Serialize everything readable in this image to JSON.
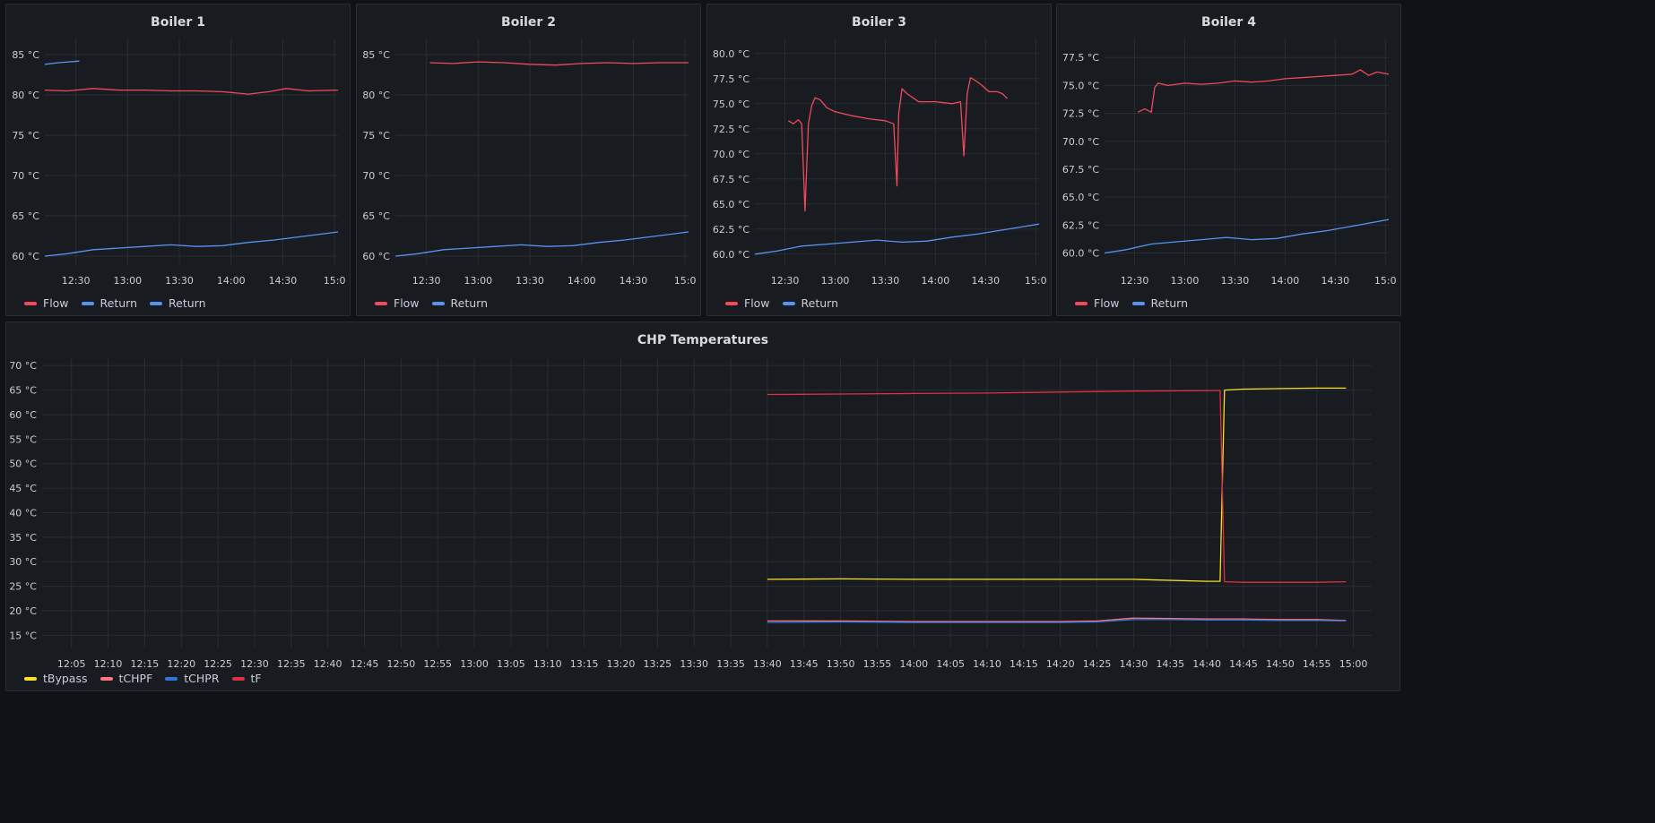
{
  "colors": {
    "flow": "#f2495c",
    "return": "#5794f2",
    "tBypass": "#fade2a",
    "tCHPF": "#ff7383",
    "tCHPR": "#3274d9",
    "tF": "#e02f44",
    "grid": "#2a2d33",
    "panel": "#181b1f",
    "background": "#111217"
  },
  "chart_data": [
    {
      "type": "line",
      "title": "Boiler 1",
      "x_ticks": [
        "12:30",
        "13:00",
        "13:30",
        "14:00",
        "14:30",
        "15:0"
      ],
      "y_ticks": [
        "60 °C",
        "65 °C",
        "70 °C",
        "75 °C",
        "80 °C",
        "85 °C"
      ],
      "ylim": [
        59,
        87
      ],
      "xlim_minutes": [
        732,
        902
      ],
      "grid": true,
      "legend_position": "bottom-left",
      "legend": [
        "Flow",
        "Return",
        "Return"
      ],
      "series": [
        {
          "name": "Flow",
          "color": "#f2495c",
          "x": [
            732,
            745,
            760,
            775,
            790,
            805,
            820,
            835,
            850,
            862,
            872,
            885,
            902
          ],
          "y": [
            80.6,
            80.5,
            80.8,
            80.6,
            80.6,
            80.5,
            80.5,
            80.4,
            80.1,
            80.4,
            80.8,
            80.5,
            80.6
          ]
        },
        {
          "name": "Return",
          "color": "#5794f2",
          "x": [
            732,
            745,
            760,
            775,
            790,
            805,
            820,
            835,
            850,
            865,
            880,
            902
          ],
          "y": [
            60.0,
            60.3,
            60.8,
            61.0,
            61.2,
            61.4,
            61.2,
            61.3,
            61.7,
            62.0,
            62.4,
            63.0
          ]
        },
        {
          "name": "Return",
          "color": "#5794f2",
          "x": [
            732,
            740,
            752
          ],
          "y": [
            83.8,
            84.0,
            84.2
          ]
        }
      ]
    },
    {
      "type": "line",
      "title": "Boiler 2",
      "x_ticks": [
        "12:30",
        "13:00",
        "13:30",
        "14:00",
        "14:30",
        "15:0"
      ],
      "y_ticks": [
        "60 °C",
        "65 °C",
        "70 °C",
        "75 °C",
        "80 °C",
        "85 °C"
      ],
      "ylim": [
        59,
        87
      ],
      "xlim_minutes": [
        732,
        902
      ],
      "grid": true,
      "legend_position": "bottom-left",
      "legend": [
        "Flow",
        "Return"
      ],
      "series": [
        {
          "name": "Flow",
          "color": "#f2495c",
          "x": [
            752,
            765,
            780,
            795,
            810,
            825,
            840,
            855,
            870,
            885,
            902
          ],
          "y": [
            84.0,
            83.9,
            84.1,
            84.0,
            83.8,
            83.7,
            83.9,
            84.0,
            83.9,
            84.0,
            84.0
          ]
        },
        {
          "name": "Return",
          "color": "#5794f2",
          "x": [
            732,
            745,
            760,
            775,
            790,
            805,
            820,
            835,
            850,
            865,
            880,
            902
          ],
          "y": [
            60.0,
            60.3,
            60.8,
            61.0,
            61.2,
            61.4,
            61.2,
            61.3,
            61.7,
            62.0,
            62.4,
            63.0
          ]
        }
      ]
    },
    {
      "type": "line",
      "title": "Boiler 3",
      "x_ticks": [
        "12:30",
        "13:00",
        "13:30",
        "14:00",
        "14:30",
        "15:0"
      ],
      "y_ticks": [
        "60.0 °C",
        "62.5 °C",
        "65.0 °C",
        "67.5 °C",
        "70.0 °C",
        "72.5 °C",
        "75.0 °C",
        "77.5 °C",
        "80.0 °C"
      ],
      "ylim": [
        59,
        81.5
      ],
      "xlim_minutes": [
        732,
        902
      ],
      "grid": true,
      "legend_position": "bottom-left",
      "legend": [
        "Flow",
        "Return"
      ],
      "series": [
        {
          "name": "Flow",
          "color": "#f2495c",
          "x": [
            752,
            755,
            758,
            760,
            762,
            764,
            766,
            768,
            771,
            775,
            780,
            790,
            800,
            810,
            815,
            817,
            818,
            820,
            823,
            830,
            840,
            850,
            855,
            857,
            859,
            861,
            864,
            868,
            872,
            877,
            880,
            883
          ],
          "y": [
            73.3,
            73.0,
            73.4,
            73.0,
            64.3,
            73.0,
            74.8,
            75.6,
            75.4,
            74.6,
            74.2,
            73.8,
            73.5,
            73.3,
            73.0,
            66.8,
            74.0,
            76.5,
            76.0,
            75.2,
            75.2,
            75.0,
            75.2,
            69.8,
            76.0,
            77.6,
            77.3,
            76.8,
            76.2,
            76.2,
            76.0,
            75.5
          ]
        },
        {
          "name": "Return",
          "color": "#5794f2",
          "x": [
            732,
            745,
            760,
            775,
            790,
            805,
            820,
            835,
            850,
            865,
            880,
            902
          ],
          "y": [
            60.0,
            60.3,
            60.8,
            61.0,
            61.2,
            61.4,
            61.2,
            61.3,
            61.7,
            62.0,
            62.4,
            63.0
          ]
        }
      ]
    },
    {
      "type": "line",
      "title": "Boiler 4",
      "x_ticks": [
        "12:30",
        "13:00",
        "13:30",
        "14:00",
        "14:30",
        "15:0"
      ],
      "y_ticks": [
        "60.0 °C",
        "62.5 °C",
        "65.0 °C",
        "67.5 °C",
        "70.0 °C",
        "72.5 °C",
        "75.0 °C",
        "77.5 °C"
      ],
      "ylim": [
        59,
        79.2
      ],
      "xlim_minutes": [
        732,
        902
      ],
      "grid": true,
      "legend_position": "bottom-left",
      "legend": [
        "Flow",
        "Return"
      ],
      "series": [
        {
          "name": "Flow",
          "color": "#f2495c",
          "x": [
            752,
            756,
            760,
            762,
            764,
            770,
            780,
            790,
            800,
            810,
            820,
            830,
            840,
            850,
            860,
            870,
            880,
            885,
            890,
            895,
            902
          ],
          "y": [
            72.6,
            72.9,
            72.6,
            74.8,
            75.2,
            75.0,
            75.2,
            75.1,
            75.2,
            75.4,
            75.3,
            75.4,
            75.6,
            75.7,
            75.8,
            75.9,
            76.0,
            76.4,
            75.9,
            76.2,
            76.0
          ]
        },
        {
          "name": "Return",
          "color": "#5794f2",
          "x": [
            732,
            745,
            760,
            775,
            790,
            805,
            820,
            835,
            850,
            865,
            880,
            902
          ],
          "y": [
            60.0,
            60.3,
            60.8,
            61.0,
            61.2,
            61.4,
            61.2,
            61.3,
            61.7,
            62.0,
            62.4,
            63.0
          ]
        }
      ]
    },
    {
      "type": "line",
      "title": "CHP Temperatures",
      "x_ticks": [
        "12:05",
        "12:10",
        "12:15",
        "12:20",
        "12:25",
        "12:30",
        "12:35",
        "12:40",
        "12:45",
        "12:50",
        "12:55",
        "13:00",
        "13:05",
        "13:10",
        "13:15",
        "13:20",
        "13:25",
        "13:30",
        "13:35",
        "13:40",
        "13:45",
        "13:50",
        "13:55",
        "14:00",
        "14:05",
        "14:10",
        "14:15",
        "14:20",
        "14:25",
        "14:30",
        "14:35",
        "14:40",
        "14:45",
        "14:50",
        "14:55",
        "15:00"
      ],
      "y_ticks": [
        "15 °C",
        "20 °C",
        "25 °C",
        "30 °C",
        "35 °C",
        "40 °C",
        "45 °C",
        "50 °C",
        "55 °C",
        "60 °C",
        "65 °C",
        "70 °C"
      ],
      "ylim": [
        12.5,
        71.5
      ],
      "xlim_minutes": [
        721,
        902.5
      ],
      "grid": true,
      "legend_position": "bottom-left",
      "legend": [
        "tBypass",
        "tCHPF",
        "tCHPR",
        "tF"
      ],
      "series": [
        {
          "name": "tBypass",
          "color": "#fade2a",
          "x": [
            820,
            830,
            840,
            850,
            860,
            870,
            880,
            881.8,
            882.4,
            885,
            890,
            895,
            899
          ],
          "y": [
            26.4,
            26.5,
            26.4,
            26.4,
            26.4,
            26.4,
            26.0,
            26.0,
            65.0,
            65.2,
            65.3,
            65.4,
            65.4
          ]
        },
        {
          "name": "tCHPF",
          "color": "#ff7383",
          "x": [
            820,
            830,
            840,
            850,
            860,
            865,
            870,
            875,
            880,
            885,
            890,
            895,
            899
          ],
          "y": [
            17.9,
            17.9,
            17.8,
            17.8,
            17.8,
            17.9,
            18.5,
            18.4,
            18.3,
            18.3,
            18.2,
            18.2,
            18.0
          ]
        },
        {
          "name": "tCHPR",
          "color": "#3274d9",
          "x": [
            820,
            830,
            840,
            850,
            860,
            865,
            870,
            875,
            880,
            885,
            890,
            895,
            899
          ],
          "y": [
            17.6,
            17.7,
            17.6,
            17.6,
            17.6,
            17.7,
            18.2,
            18.2,
            18.1,
            18.1,
            18.0,
            18.0,
            17.9
          ]
        },
        {
          "name": "tF",
          "color": "#e02f44",
          "x": [
            820,
            830,
            840,
            850,
            860,
            870,
            881.3,
            881.8,
            882.4,
            885,
            890,
            895,
            899
          ],
          "y": [
            64.1,
            64.2,
            64.3,
            64.4,
            64.6,
            64.8,
            64.9,
            64.9,
            25.9,
            25.8,
            25.8,
            25.8,
            25.9
          ]
        }
      ]
    }
  ]
}
